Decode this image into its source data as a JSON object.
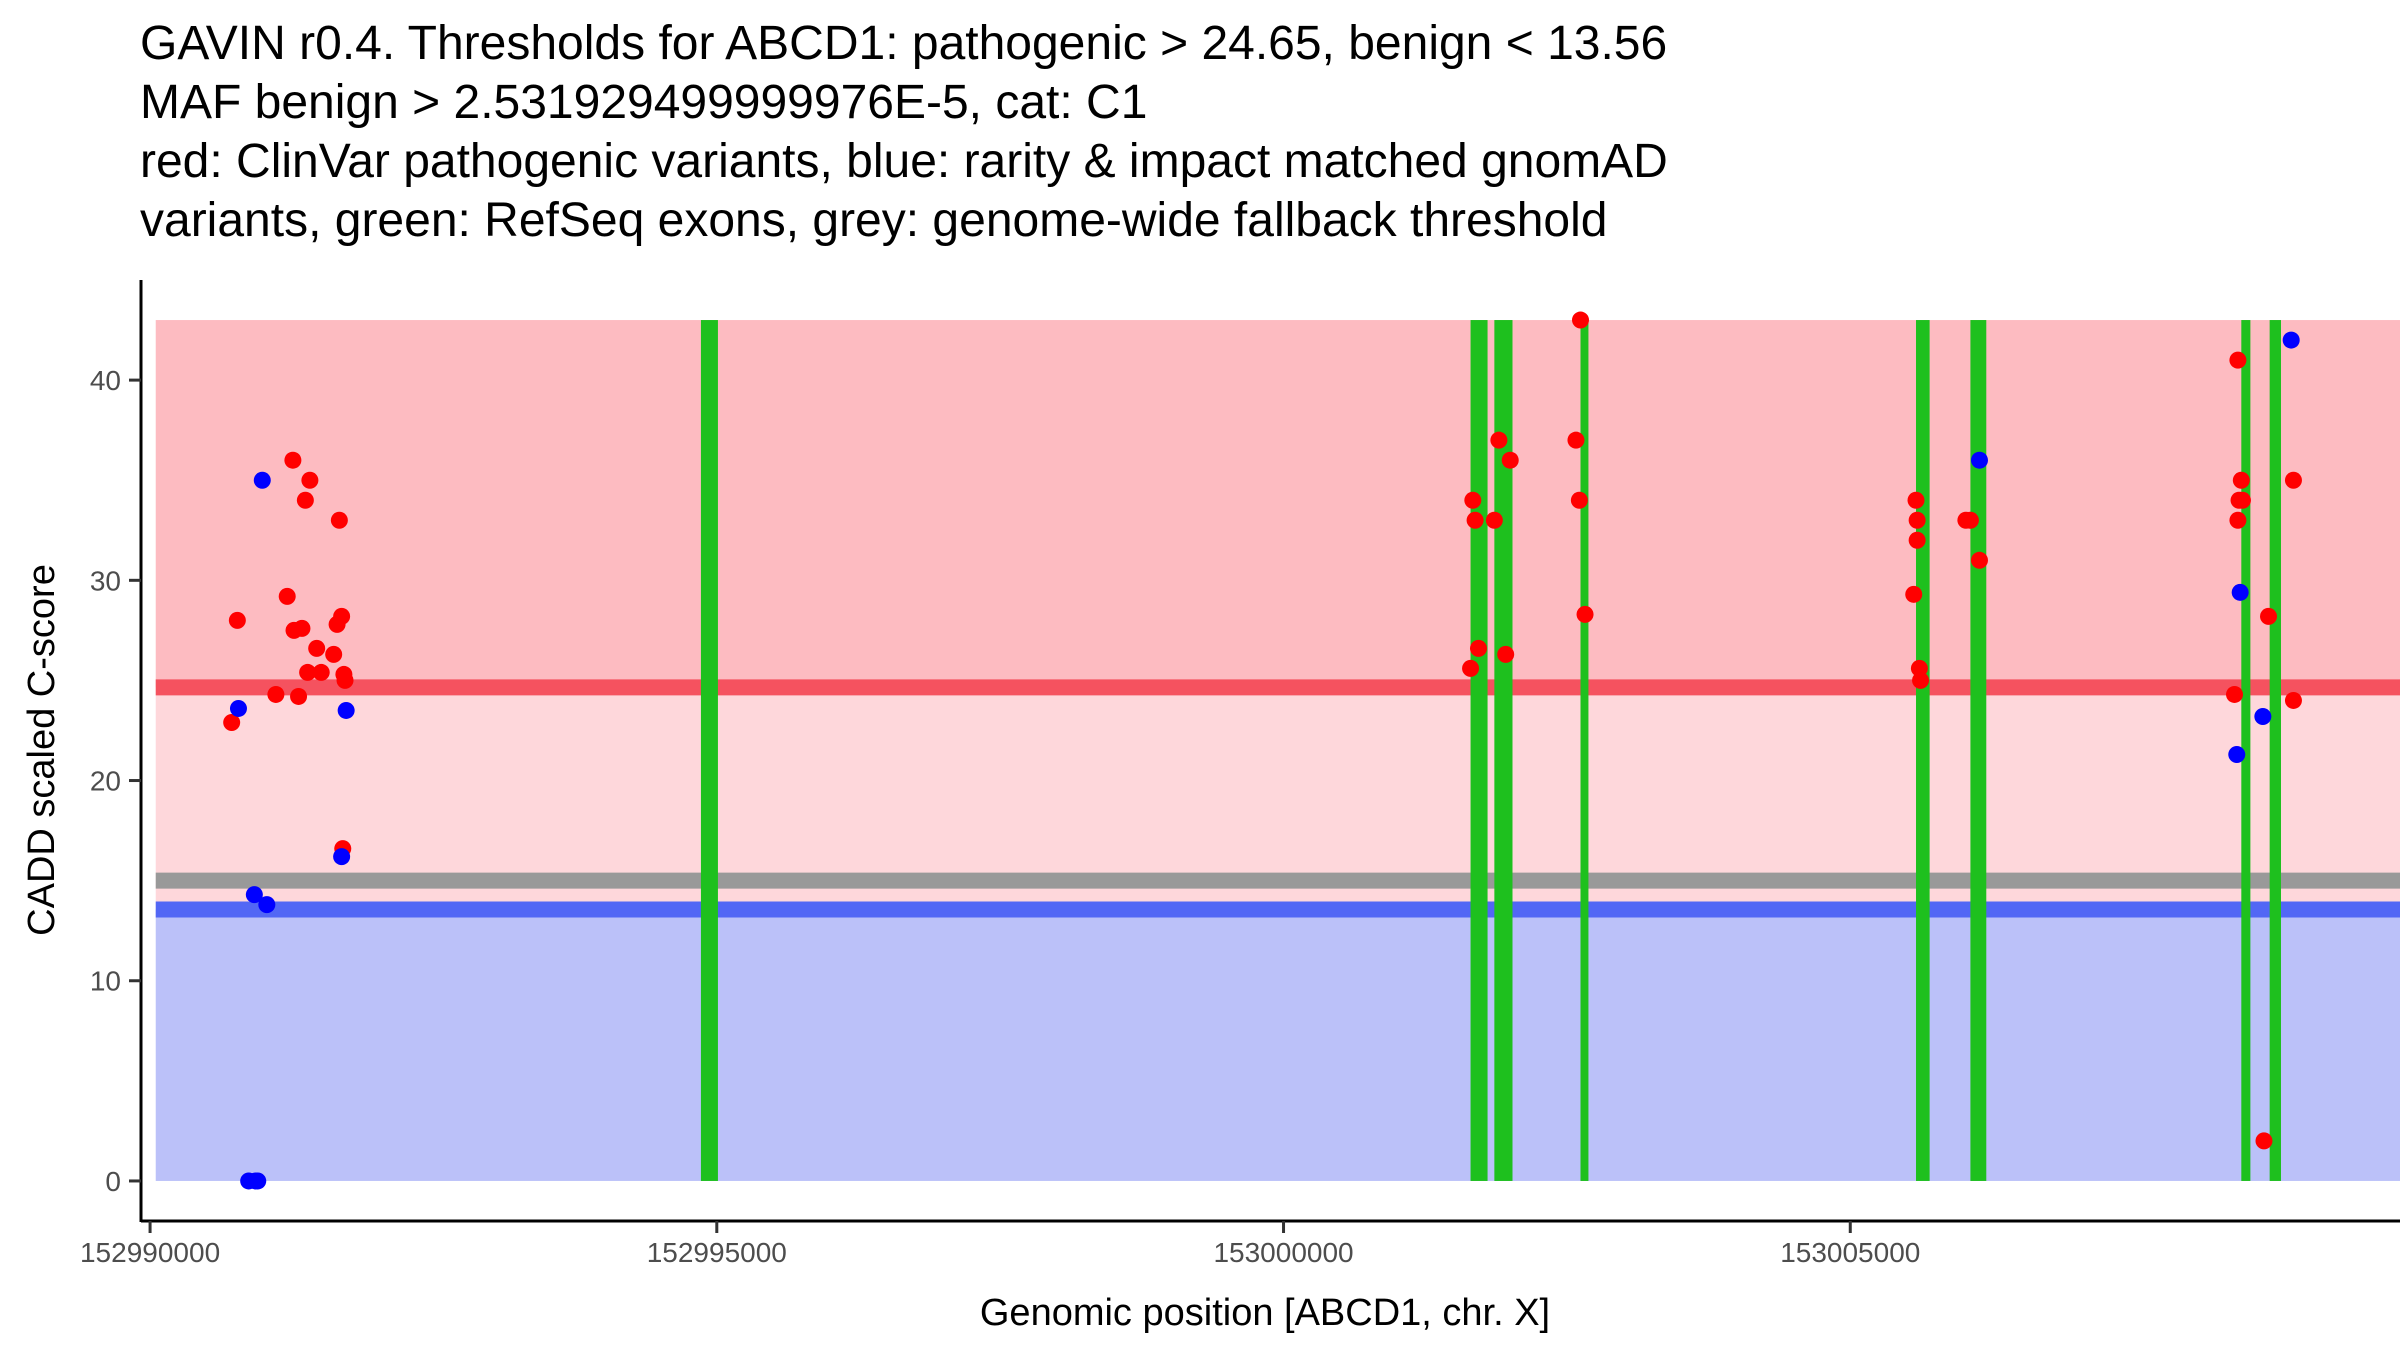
{
  "chart_data": {
    "type": "scatter",
    "title": [
      "GAVIN r0.4. Thresholds for ABCD1: pathogenic > 24.65, benign < 13.56",
      "MAF benign > 2.531929499999976E-5, cat: C1",
      "red: ClinVar pathogenic variants, blue: rarity & impact matched gnomAD",
      "variants, green: RefSeq exons, grey: genome-wide fallback threshold"
    ],
    "xlabel": "Genomic position [ABCD1, chr. X]",
    "ylabel": "CADD scaled C-score",
    "xlim": [
      152989920,
      153009850
    ],
    "ylim": [
      -2,
      45
    ],
    "x_ticks": [
      152990000,
      152995000,
      153000000,
      153005000
    ],
    "x_tick_labels": [
      "152990000",
      "152995000",
      "153000000",
      "153005000"
    ],
    "y_ticks": [
      0,
      10,
      20,
      30,
      40
    ],
    "y_tick_labels": [
      "0",
      "10",
      "20",
      "30",
      "40"
    ],
    "grid": false,
    "regions": [
      {
        "name": "pathogenic-region",
        "y0": 24.65,
        "y1": 43,
        "x0": 152990050,
        "x1": 153009850,
        "color": "#fdbbc1"
      },
      {
        "name": "intermediate-region",
        "y0": 13.56,
        "y1": 24.65,
        "x0": 152990050,
        "x1": 153009850,
        "color": "#fed7db"
      },
      {
        "name": "benign-region",
        "y0": 0,
        "y1": 13.56,
        "x0": 152990050,
        "x1": 153009850,
        "color": "#bbc1f9"
      }
    ],
    "threshold_lines": [
      {
        "name": "pathogenic-threshold-line",
        "y": 24.65,
        "color": "#f5525f"
      },
      {
        "name": "fallback-threshold-line",
        "y": 15.0,
        "color": "#999999"
      },
      {
        "name": "benign-threshold-line",
        "y": 13.56,
        "color": "#5267f5"
      }
    ],
    "exons": [
      {
        "start": 152994860,
        "end": 152995010
      },
      {
        "start": 153001650,
        "end": 153001800
      },
      {
        "start": 153001860,
        "end": 153002020
      },
      {
        "start": 153002620,
        "end": 153002690
      },
      {
        "start": 153005580,
        "end": 153005700
      },
      {
        "start": 153006060,
        "end": 153006200
      },
      {
        "start": 153008450,
        "end": 153008530
      },
      {
        "start": 153008700,
        "end": 153008800
      }
    ],
    "exon_color": "#1ec01e",
    "series": [
      {
        "name": "ClinVar pathogenic",
        "color": "#ff0000",
        "points": [
          [
            152990720,
            22.9
          ],
          [
            152990770,
            28.0
          ],
          [
            152991110,
            24.3
          ],
          [
            152991210,
            29.2
          ],
          [
            152991260,
            36.0
          ],
          [
            152991270,
            27.5
          ],
          [
            152991310,
            24.2
          ],
          [
            152991340,
            27.6
          ],
          [
            152991370,
            34.0
          ],
          [
            152991390,
            25.4
          ],
          [
            152991410,
            35.0
          ],
          [
            152991470,
            26.6
          ],
          [
            152991510,
            25.4
          ],
          [
            152991620,
            26.3
          ],
          [
            152991650,
            27.8
          ],
          [
            152991670,
            33.0
          ],
          [
            152991690,
            28.2
          ],
          [
            152991700,
            16.6
          ],
          [
            152991710,
            25.3
          ],
          [
            152991720,
            25.0
          ],
          [
            153001650,
            25.6
          ],
          [
            153001670,
            34.0
          ],
          [
            153001690,
            33.0
          ],
          [
            153001720,
            26.6
          ],
          [
            153001860,
            33.0
          ],
          [
            153001900,
            37.0
          ],
          [
            153001960,
            26.3
          ],
          [
            153002000,
            36.0
          ],
          [
            153002580,
            37.0
          ],
          [
            153002610,
            34.0
          ],
          [
            153002620,
            43.0
          ],
          [
            153002660,
            28.3
          ],
          [
            153005560,
            29.3
          ],
          [
            153005580,
            34.0
          ],
          [
            153005590,
            33.0
          ],
          [
            153005590,
            32.0
          ],
          [
            153005610,
            25.6
          ],
          [
            153005620,
            25.0
          ],
          [
            153006020,
            33.0
          ],
          [
            153006060,
            33.0
          ],
          [
            153006140,
            31.0
          ],
          [
            153008390,
            24.3
          ],
          [
            153008420,
            41.0
          ],
          [
            153008420,
            33.0
          ],
          [
            153008430,
            34.0
          ],
          [
            153008450,
            35.0
          ],
          [
            153008460,
            34.0
          ],
          [
            153008650,
            2.0
          ],
          [
            153008690,
            28.2
          ],
          [
            153008910,
            35.0
          ],
          [
            153008910,
            24.0
          ]
        ]
      },
      {
        "name": "gnomAD matched",
        "color": "#0000ff",
        "points": [
          [
            152990780,
            23.6
          ],
          [
            152990870,
            0.0
          ],
          [
            152990920,
            14.3
          ],
          [
            152990930,
            0.0
          ],
          [
            152990950,
            0.0
          ],
          [
            152990990,
            35.0
          ],
          [
            152991030,
            13.8
          ],
          [
            152991690,
            16.2
          ],
          [
            152991730,
            23.5
          ],
          [
            153006140,
            36.0
          ],
          [
            153008410,
            21.3
          ],
          [
            153008440,
            29.4
          ],
          [
            153008640,
            23.2
          ],
          [
            153008890,
            42.0
          ]
        ]
      }
    ]
  }
}
